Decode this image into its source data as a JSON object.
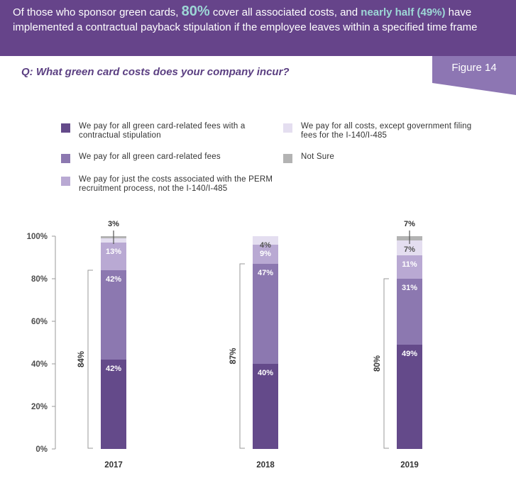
{
  "banner": {
    "part1": "Of those who sponsor green cards, ",
    "pct": "80%",
    "part2": " cover all associated costs, and ",
    "nearly_half": "nearly half",
    "pct2": "(49%)",
    "part3": " have implemented a contractual payback stipulation if the employee leaves within a specified time frame"
  },
  "question": "Q: What green card costs does your company incur?",
  "figure_label": "Figure 14",
  "colors": {
    "banner": "#66448a",
    "accent": "#9dd7d6",
    "series": [
      "#644a8a",
      "#8c78b0",
      "#b9a9d3",
      "#e4def0",
      "#b3b3b3"
    ]
  },
  "chart_data": {
    "type": "bar",
    "stacked": true,
    "categories": [
      "2017",
      "2018",
      "2019"
    ],
    "series": [
      {
        "name": "We pay for all green card-related fees with a contractual stipulation",
        "values": [
          42,
          40,
          49
        ]
      },
      {
        "name": "We pay for all green card-related fees",
        "values": [
          42,
          47,
          31
        ]
      },
      {
        "name": "We pay for just the costs associated with the PERM recruitment process, not the I-140/I-485",
        "values": [
          13,
          9,
          11
        ]
      },
      {
        "name": "We pay for all costs, except government filing fees for the I-140/I-485",
        "values": [
          2,
          4,
          7
        ]
      },
      {
        "name": "Not Sure",
        "values": [
          1,
          0,
          2
        ]
      }
    ],
    "segment_labels": [
      [
        "42%",
        "42%",
        "13%",
        "",
        ""
      ],
      [
        "40%",
        "47%",
        "9%",
        "4%",
        ""
      ],
      [
        "49%",
        "31%",
        "11%",
        "7%",
        ""
      ]
    ],
    "top_callouts": [
      "3%",
      "",
      "7%"
    ],
    "bracket_labels": [
      "84%",
      "87%",
      "80%"
    ],
    "yticks": [
      "0%",
      "20%",
      "40%",
      "60%",
      "80%",
      "100%"
    ],
    "ylim": [
      0,
      100
    ],
    "legend_position": "top"
  }
}
